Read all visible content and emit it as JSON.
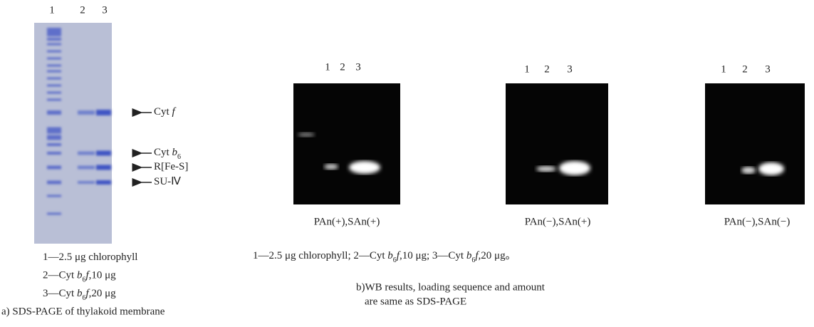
{
  "panel_a": {
    "lanes": [
      "1",
      "2",
      "3"
    ],
    "bands": [
      [
        {
          "text": "Cyt "
        },
        {
          "text": "f",
          "style": "italic"
        }
      ],
      [
        {
          "text": "Cyt "
        },
        {
          "text": "b",
          "style": "italic"
        },
        {
          "text": "6",
          "style": "sub"
        }
      ],
      [
        {
          "text": "R[Fe-S]"
        }
      ],
      [
        {
          "text": "SU-Ⅳ"
        }
      ]
    ],
    "legend": [
      [
        {
          "text": "1—2.5 μg chlorophyll"
        }
      ],
      [
        {
          "text": "2—Cyt "
        },
        {
          "text": "b",
          "style": "italic"
        },
        {
          "text": "6",
          "style": "sub"
        },
        {
          "text": "f",
          "style": "italic"
        },
        {
          "text": ",10 μg"
        }
      ],
      [
        {
          "text": "3—Cyt "
        },
        {
          "text": "b",
          "style": "italic"
        },
        {
          "text": "6",
          "style": "sub"
        },
        {
          "text": "f",
          "style": "italic"
        },
        {
          "text": ",20 μg"
        }
      ]
    ],
    "caption": "a) SDS-PAGE of thylakoid membrane"
  },
  "panel_b": {
    "blots": [
      {
        "lanes": [
          "1",
          "2",
          "3"
        ],
        "caption": "PAn(+),SAn(+)"
      },
      {
        "lanes": [
          "1",
          "2",
          "3"
        ],
        "caption": "PAn(−),SAn(+)"
      },
      {
        "lanes": [
          "1",
          "2",
          "3"
        ],
        "caption": "PAn(−),SAn(−)"
      }
    ],
    "legend": [
      {
        "text": "1—2.5 μg chlorophyll; 2—Cyt "
      },
      {
        "text": "b",
        "style": "italic"
      },
      {
        "text": "6",
        "style": "sub"
      },
      {
        "text": "f",
        "style": "italic"
      },
      {
        "text": ",10 μg; 3—Cyt "
      },
      {
        "text": "b",
        "style": "italic"
      },
      {
        "text": "6",
        "style": "sub"
      },
      {
        "text": "f",
        "style": "italic"
      },
      {
        "text": ",20 μg。"
      }
    ],
    "caption": [
      "b)WB results, loading sequence and amount",
      "are same as SDS-PAGE"
    ]
  }
}
